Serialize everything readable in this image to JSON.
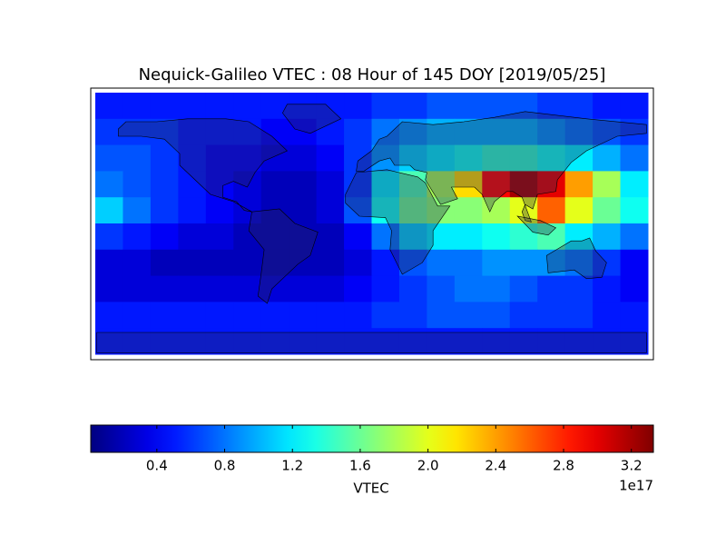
{
  "chart_data": {
    "type": "heatmap",
    "title": "Nequick-Galileo VTEC : 08 Hour of 145 DOY [2019/05/25]",
    "colormap": "jet",
    "values": [
      [
        0.5,
        0.5,
        0.5,
        0.5,
        0.5,
        0.5,
        0.5,
        0.5,
        0.5,
        0.5,
        0.6,
        0.6,
        0.7,
        0.7,
        0.7,
        0.7,
        0.6,
        0.6,
        0.5,
        0.5
      ],
      [
        0.6,
        0.6,
        0.6,
        0.5,
        0.5,
        0.5,
        0.4,
        0.4,
        0.5,
        0.6,
        0.8,
        0.9,
        1.0,
        1.0,
        1.0,
        1.0,
        0.9,
        0.8,
        0.7,
        0.6
      ],
      [
        0.7,
        0.7,
        0.6,
        0.5,
        0.4,
        0.4,
        0.3,
        0.3,
        0.4,
        0.6,
        0.9,
        1.1,
        1.2,
        1.3,
        1.4,
        1.4,
        1.3,
        1.2,
        1.0,
        0.8
      ],
      [
        0.8,
        0.7,
        0.6,
        0.5,
        0.4,
        0.3,
        0.2,
        0.2,
        0.3,
        0.6,
        1.2,
        1.5,
        1.8,
        2.2,
        2.9,
        3.2,
        3.0,
        2.4,
        1.8,
        1.2
      ],
      [
        1.1,
        0.8,
        0.6,
        0.5,
        0.4,
        0.3,
        0.2,
        0.2,
        0.3,
        0.7,
        1.3,
        1.6,
        1.7,
        1.7,
        1.8,
        2.0,
        2.6,
        2.0,
        1.6,
        1.3
      ],
      [
        0.6,
        0.5,
        0.4,
        0.3,
        0.3,
        0.2,
        0.2,
        0.2,
        0.2,
        0.4,
        0.8,
        1.1,
        1.2,
        1.2,
        1.3,
        1.4,
        1.5,
        1.2,
        1.0,
        0.8
      ],
      [
        0.3,
        0.3,
        0.2,
        0.2,
        0.2,
        0.2,
        0.2,
        0.2,
        0.2,
        0.3,
        0.5,
        0.7,
        0.8,
        0.8,
        0.9,
        0.9,
        0.9,
        0.8,
        0.6,
        0.4
      ],
      [
        0.3,
        0.3,
        0.3,
        0.3,
        0.3,
        0.3,
        0.3,
        0.3,
        0.3,
        0.4,
        0.5,
        0.6,
        0.7,
        0.8,
        0.8,
        0.7,
        0.6,
        0.6,
        0.5,
        0.4
      ],
      [
        0.5,
        0.5,
        0.5,
        0.5,
        0.5,
        0.5,
        0.5,
        0.5,
        0.5,
        0.5,
        0.6,
        0.6,
        0.7,
        0.7,
        0.7,
        0.6,
        0.6,
        0.6,
        0.5,
        0.5
      ],
      [
        0.5,
        0.5,
        0.5,
        0.5,
        0.5,
        0.5,
        0.5,
        0.5,
        0.5,
        0.5,
        0.5,
        0.5,
        0.5,
        0.5,
        0.5,
        0.5,
        0.5,
        0.5,
        0.5,
        0.5
      ]
    ],
    "clim": [
      0.01,
      3.33
    ],
    "colorbar_ticks": [
      0.4,
      0.8,
      1.2,
      1.6,
      {
        "value": 2,
        "label": "2.0"
      },
      2.4,
      2.8,
      3.2
    ],
    "colorbar_label": "VTEC",
    "colorbar_offset": "1e17"
  }
}
